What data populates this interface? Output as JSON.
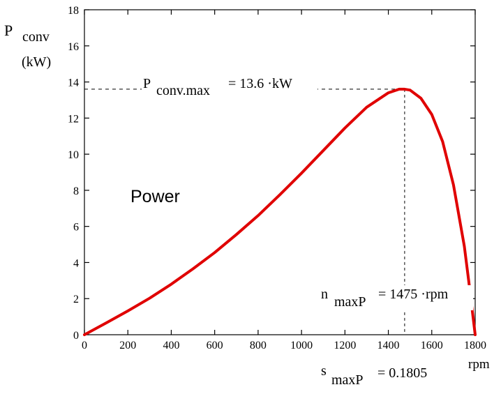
{
  "colors": {
    "curve": "#e00000",
    "axis": "#000000",
    "guide": "#000000",
    "background": "#ffffff"
  },
  "chart_data": {
    "type": "line",
    "title": "",
    "xlabel": "rpm",
    "ylabel": {
      "main": "P",
      "sub": "conv",
      "unit": "(kW)"
    },
    "xlim": [
      0,
      1800
    ],
    "ylim": [
      0,
      18
    ],
    "xticks": [
      0,
      200,
      400,
      600,
      800,
      1000,
      1200,
      1400,
      1600,
      1800
    ],
    "yticks": [
      0,
      2,
      4,
      6,
      8,
      10,
      12,
      14,
      16,
      18
    ],
    "xtick_labels": [
      "0",
      "200",
      "400",
      "600",
      "800",
      "1000",
      "1200",
      "1400",
      "1600",
      "1800"
    ],
    "ytick_labels": [
      "0",
      "2",
      "4",
      "6",
      "8",
      "10",
      "12",
      "14",
      "16",
      "18"
    ],
    "grid": false,
    "legend": "none",
    "series": [
      {
        "label_inside_plot": "Power",
        "x": [
          0,
          100,
          200,
          300,
          400,
          500,
          600,
          700,
          800,
          900,
          1000,
          1100,
          1200,
          1300,
          1400,
          1450,
          1475,
          1500,
          1550,
          1600,
          1650,
          1700,
          1750,
          1770,
          1790,
          1800
        ],
        "y": [
          0,
          0.65,
          1.32,
          2.02,
          2.8,
          3.65,
          4.55,
          5.55,
          6.6,
          7.75,
          8.95,
          10.2,
          11.45,
          12.6,
          13.4,
          13.6,
          13.6,
          13.55,
          13.1,
          12.2,
          10.7,
          8.3,
          4.9,
          3.0,
          1.0,
          0
        ]
      }
    ],
    "annotations": {
      "pmax": {
        "main": "P",
        "sub": "conv.max",
        "rest": "= 13.6 ·kW",
        "x": 1475,
        "y": 13.6
      },
      "nmax": {
        "main": "n",
        "sub": "maxP",
        "rest": "= 1475 ·rpm"
      },
      "smax": {
        "main": "s",
        "sub": "maxP",
        "rest": "= 0.1805"
      }
    }
  }
}
